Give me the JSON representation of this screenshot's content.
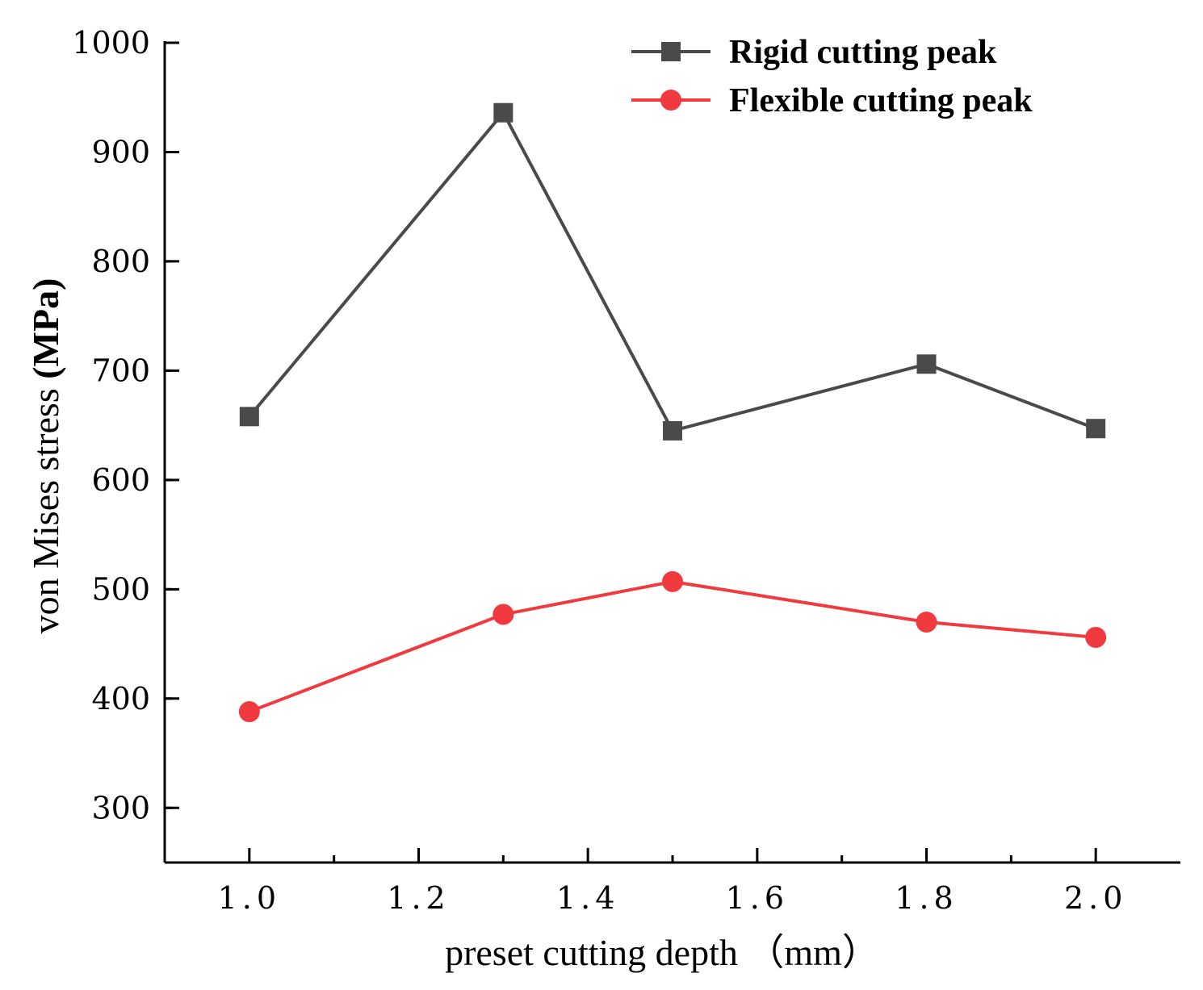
{
  "chart_data": {
    "type": "line",
    "title": "",
    "xlabel": "preset cutting depth （mm）",
    "ylabel": "von Mises stress (MPa)",
    "ylabel_parts": {
      "main": "von Mises stress ",
      "bold": "(MPa)"
    },
    "x": [
      1.0,
      1.3,
      1.5,
      1.8,
      2.0
    ],
    "xlim": [
      0.9,
      2.1
    ],
    "ylim": [
      250,
      1000
    ],
    "xticks": [
      1.0,
      1.2,
      1.4,
      1.6,
      1.8,
      2.0
    ],
    "xtick_labels": [
      "1.0",
      "1.2",
      "1.4",
      "1.6",
      "1.8",
      "2.0"
    ],
    "yticks": [
      300,
      400,
      500,
      600,
      700,
      800,
      900,
      1000
    ],
    "ytick_labels": [
      "300",
      "400",
      "500",
      "600",
      "700",
      "800",
      "900",
      "1000"
    ],
    "legend_position": "top-right",
    "grid": false,
    "series": [
      {
        "name": "Rigid cutting peak",
        "marker": "square",
        "color": "#4a4a4a",
        "values": [
          658,
          936,
          645,
          706,
          647
        ]
      },
      {
        "name": "Flexible cutting peak",
        "marker": "circle",
        "color": "#f03a3f",
        "values": [
          388,
          477,
          507,
          470,
          456
        ]
      }
    ]
  }
}
